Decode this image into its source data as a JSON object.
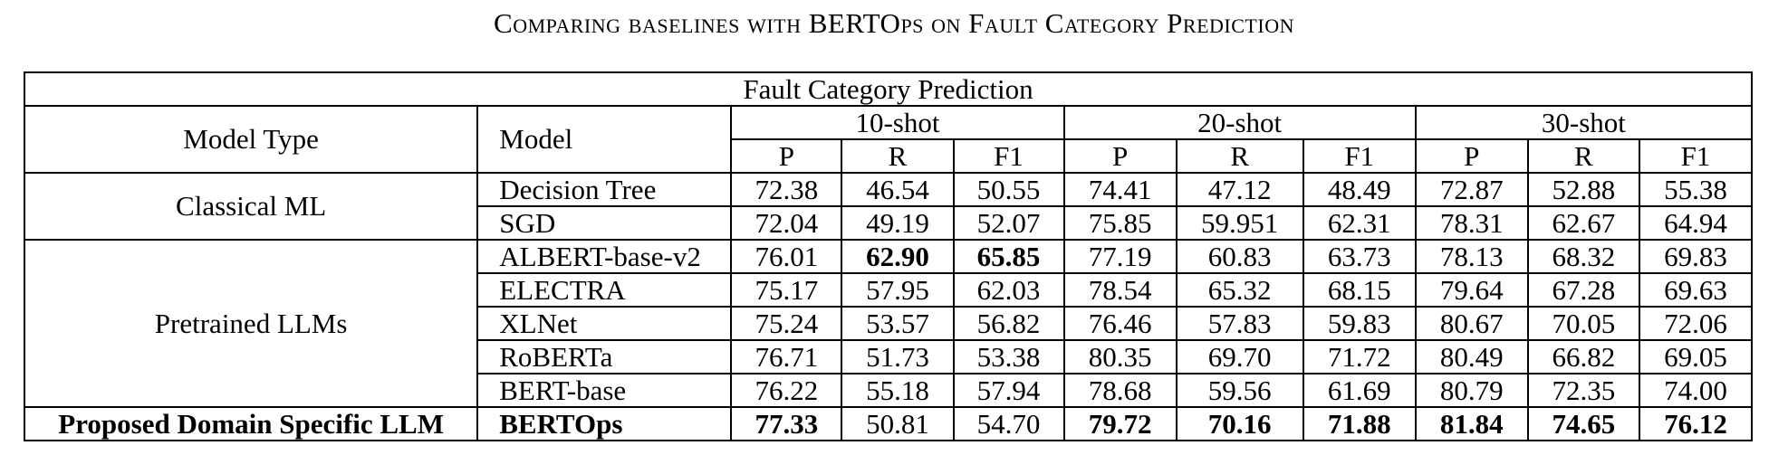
{
  "caption": "Comparing baselines with BERTOps on Fault Category Prediction",
  "table": {
    "title": "Fault Category Prediction",
    "header": {
      "model_type": "Model Type",
      "model": "Model",
      "shots": [
        "10-shot",
        "20-shot",
        "30-shot"
      ],
      "metrics": [
        "P",
        "R",
        "F1"
      ]
    },
    "groups": [
      {
        "model_type": "Classical ML",
        "rows": [
          {
            "model": "Decision Tree",
            "values": [
              "72.38",
              "46.54",
              "50.55",
              "74.41",
              "47.12",
              "48.49",
              "72.87",
              "52.88",
              "55.38"
            ]
          },
          {
            "model": "SGD",
            "values": [
              "72.04",
              "49.19",
              "52.07",
              "75.85",
              "59.951",
              "62.31",
              "78.31",
              "62.67",
              "64.94"
            ]
          }
        ]
      },
      {
        "model_type": "Pretrained LLMs",
        "rows": [
          {
            "model": "ALBERT-base-v2",
            "values": [
              "76.01",
              "62.90",
              "65.85",
              "77.19",
              "60.83",
              "63.73",
              "78.13",
              "68.32",
              "69.83"
            ]
          },
          {
            "model": "ELECTRA",
            "values": [
              "75.17",
              "57.95",
              "62.03",
              "78.54",
              "65.32",
              "68.15",
              "79.64",
              "67.28",
              "69.63"
            ]
          },
          {
            "model": "XLNet",
            "values": [
              "75.24",
              "53.57",
              "56.82",
              "76.46",
              "57.83",
              "59.83",
              "80.67",
              "70.05",
              "72.06"
            ]
          },
          {
            "model": "RoBERTa",
            "values": [
              "76.71",
              "51.73",
              "53.38",
              "80.35",
              "69.70",
              "71.72",
              "80.49",
              "66.82",
              "69.05"
            ]
          },
          {
            "model": "BERT-base",
            "values": [
              "76.22",
              "55.18",
              "57.94",
              "78.68",
              "59.56",
              "61.69",
              "80.79",
              "72.35",
              "74.00"
            ]
          }
        ]
      },
      {
        "model_type": "Proposed Domain Specific LLM",
        "rows": [
          {
            "model": "BERTOps",
            "values": [
              "77.33",
              "50.81",
              "54.70",
              "79.72",
              "70.16",
              "71.88",
              "81.84",
              "74.65",
              "76.12"
            ]
          }
        ]
      }
    ]
  }
}
